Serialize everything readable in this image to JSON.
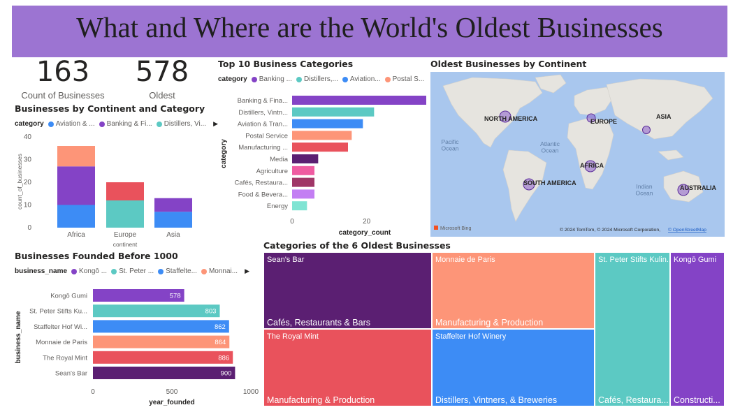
{
  "title": "What and Where are the World's Oldest Businesses",
  "cards": {
    "count": {
      "value": "163",
      "label": "Count of Businesses"
    },
    "oldest": {
      "value": "578",
      "label": "Oldest"
    }
  },
  "continent_chart": {
    "title": "Businesses by Continent and Category",
    "legend_title": "category",
    "legend": [
      "Aviation & ...",
      "Banking & Fi...",
      "Distillers, Vi..."
    ],
    "xlabel": "continent",
    "ylabel": "count_of_businesses",
    "yticks": [
      "0",
      "10",
      "20",
      "30",
      "40"
    ]
  },
  "category_chart": {
    "title": "Top 10 Business Categories",
    "legend_title": "category",
    "legend": [
      "Banking ...",
      "Distillers,...",
      "Aviation...",
      "Postal S..."
    ],
    "xlabel": "category_count",
    "ylabel": "category",
    "xticks": [
      "0",
      "20"
    ]
  },
  "map": {
    "title": "Oldest Businesses by Continent",
    "labels": {
      "na": "NORTH AMERICA",
      "eu": "EUROPE",
      "asia": "ASIA",
      "af": "AFRICA",
      "sa": "SOUTH AMERICA",
      "au": "AUSTRALIA",
      "pacific": "Pacific\nOcean",
      "atlantic": "Atlantic\nOcean",
      "indian": "Indian\nOcean"
    },
    "bing": "Microsoft Bing",
    "credit": "© 2024 TomTom, © 2024 Microsoft Corporation,",
    "credit_link": "© OpenStreetMap"
  },
  "founded_chart": {
    "title": "Businesses Founded Before 1000",
    "legend_title": "business_name",
    "legend": [
      "Kongō ...",
      "St. Peter ...",
      "Staffelte...",
      "Monnai..."
    ],
    "xlabel": "year_founded",
    "ylabel": "business_name",
    "xticks": [
      "0",
      "500",
      "1000"
    ]
  },
  "treemap": {
    "title": "Categories of the 6 Oldest Businesses",
    "cells": [
      {
        "name": "Sean's Bar",
        "category": "Cafés, Restaurants & Bars",
        "color": "#5b1f72"
      },
      {
        "name": "The Royal Mint",
        "category": "Manufacturing & Production",
        "color": "#e9525c"
      },
      {
        "name": "Monnaie de Paris",
        "category": "Manufacturing & Production",
        "color": "#fd9578"
      },
      {
        "name": "Staffelter Hof Winery",
        "category": "Distillers, Vintners, & Breweries",
        "color": "#3d8cf5"
      },
      {
        "name": "St. Peter Stifts Kulin...",
        "category": "Cafés, Restaura...",
        "color": "#5cc9c3"
      },
      {
        "name": "Kongō Gumi",
        "category": "Constructi...",
        "color": "#8443c6"
      }
    ]
  },
  "chart_data": [
    {
      "type": "bar",
      "title": "Businesses by Continent and Category",
      "xlabel": "continent",
      "ylabel": "count_of_businesses",
      "categories": [
        "Africa",
        "Europe",
        "Asia"
      ],
      "ylim": [
        0,
        40
      ],
      "stacked": true,
      "segments": [
        [
          {
            "value": 10,
            "color": "#3d8cf5"
          },
          {
            "value": 17,
            "color": "#8443c6"
          },
          {
            "value": 9,
            "color": "#fd9578"
          }
        ],
        [
          {
            "value": 12,
            "color": "#5cc9c3"
          },
          {
            "value": 8,
            "color": "#e9525c"
          }
        ],
        [
          {
            "value": 7,
            "color": "#3d8cf5"
          },
          {
            "value": 6,
            "color": "#8443c6"
          }
        ]
      ]
    },
    {
      "type": "bar",
      "orientation": "horizontal",
      "title": "Top 10 Business Categories",
      "xlabel": "category_count",
      "ylabel": "category",
      "xlim": [
        0,
        36
      ],
      "categories": [
        "Banking & Fina...",
        "Distillers, Vintn...",
        "Aviation & Tran...",
        "Postal Service",
        "Manufacturing ...",
        "Media",
        "Agriculture",
        "Cafés, Restaura...",
        "Food & Bevera...",
        "Energy"
      ],
      "values": [
        37,
        22,
        19,
        16,
        15,
        7,
        6,
        6,
        6,
        4
      ],
      "colors": [
        "#8443c6",
        "#5cc9c3",
        "#3d8cf5",
        "#fd9578",
        "#e9525c",
        "#5b1f72",
        "#ef5ba1",
        "#a03667",
        "#c37ef3",
        "#7fe4d3"
      ]
    },
    {
      "type": "bar",
      "orientation": "horizontal",
      "title": "Businesses Founded Before 1000",
      "xlabel": "year_founded",
      "ylabel": "business_name",
      "xlim": [
        0,
        1000
      ],
      "categories": [
        "Kongō Gumi",
        "St. Peter Stifts Ku...",
        "Staffelter Hof Wi...",
        "Monnaie de Paris",
        "The Royal Mint",
        "Sean's Bar"
      ],
      "values": [
        578,
        803,
        862,
        864,
        886,
        900
      ],
      "colors": [
        "#8443c6",
        "#5cc9c3",
        "#3d8cf5",
        "#fd9578",
        "#e9525c",
        "#5b1f72"
      ]
    }
  ]
}
